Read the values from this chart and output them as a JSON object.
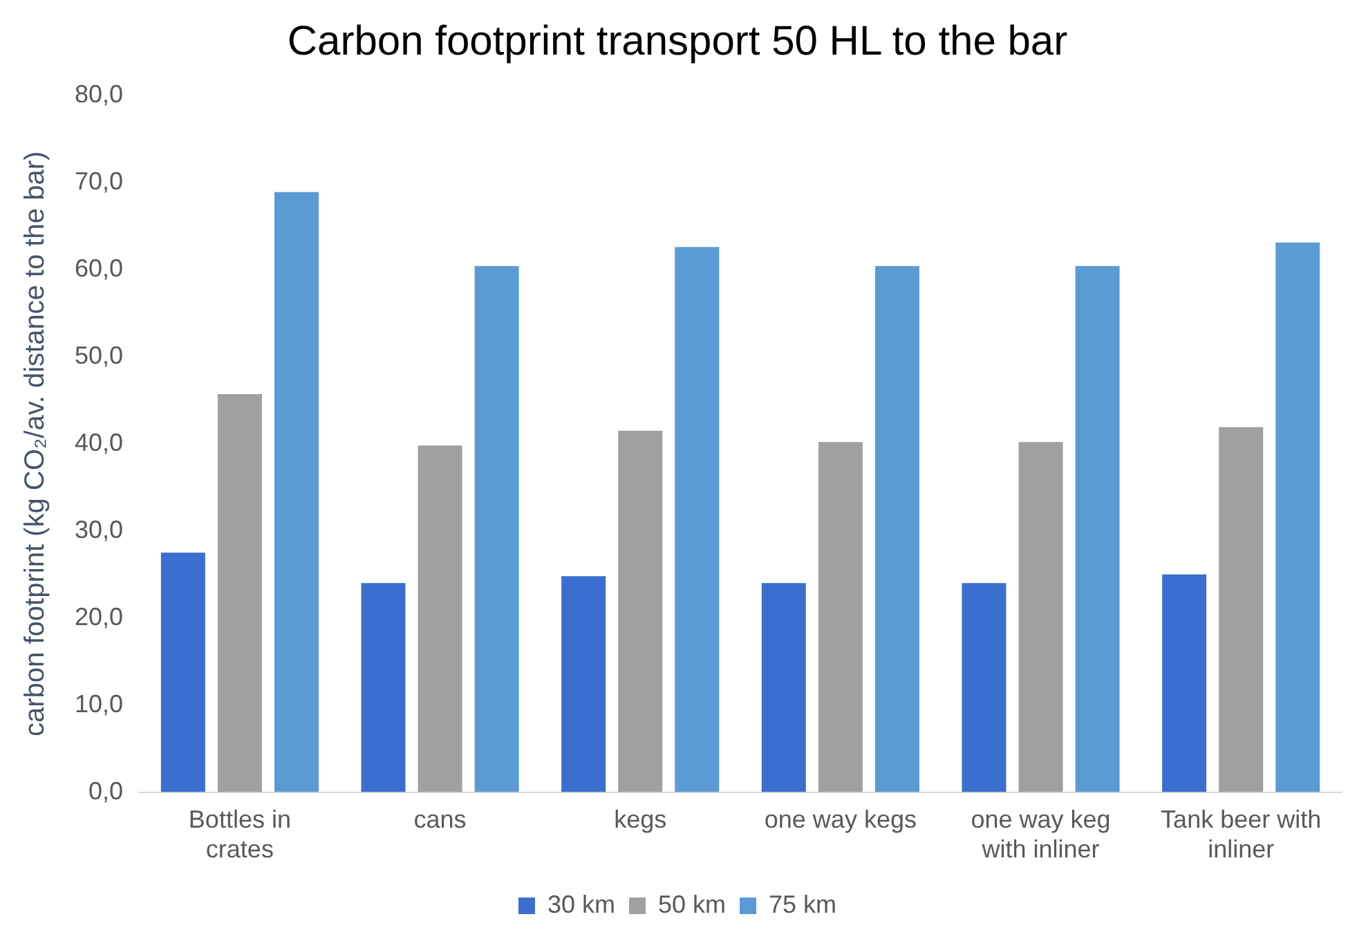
{
  "chart_data": {
    "type": "bar",
    "title": "Carbon footprint transport 50 HL to the bar",
    "ylabel": "carbon footprint (kg CO₂/av. distance to the bar)",
    "categories": [
      "Bottles in crates",
      "cans",
      "kegs",
      "one way kegs",
      "one way keg with inliner",
      "Tank beer with inliner"
    ],
    "series": [
      {
        "name": "30 km",
        "color": "#3b6fcf",
        "values": [
          27.5,
          24.0,
          24.8,
          24.0,
          24.0,
          25.0
        ]
      },
      {
        "name": "50 km",
        "color": "#a0a0a0",
        "values": [
          45.7,
          39.8,
          41.5,
          40.2,
          40.2,
          41.9
        ]
      },
      {
        "name": "75 km",
        "color": "#5b9bd5",
        "values": [
          68.9,
          60.4,
          62.6,
          60.4,
          60.4,
          63.1
        ]
      }
    ],
    "ylim": [
      0,
      80
    ],
    "yticks": [
      {
        "value": 0,
        "label": "0,0"
      },
      {
        "value": 10,
        "label": "10,0"
      },
      {
        "value": 20,
        "label": "20,0"
      },
      {
        "value": 30,
        "label": "30,0"
      },
      {
        "value": 40,
        "label": "40,0"
      },
      {
        "value": 50,
        "label": "50,0"
      },
      {
        "value": 60,
        "label": "60,0"
      },
      {
        "value": 70,
        "label": "70,0"
      },
      {
        "value": 80,
        "label": "80,0"
      }
    ],
    "grid": false,
    "legend": "bottom"
  }
}
